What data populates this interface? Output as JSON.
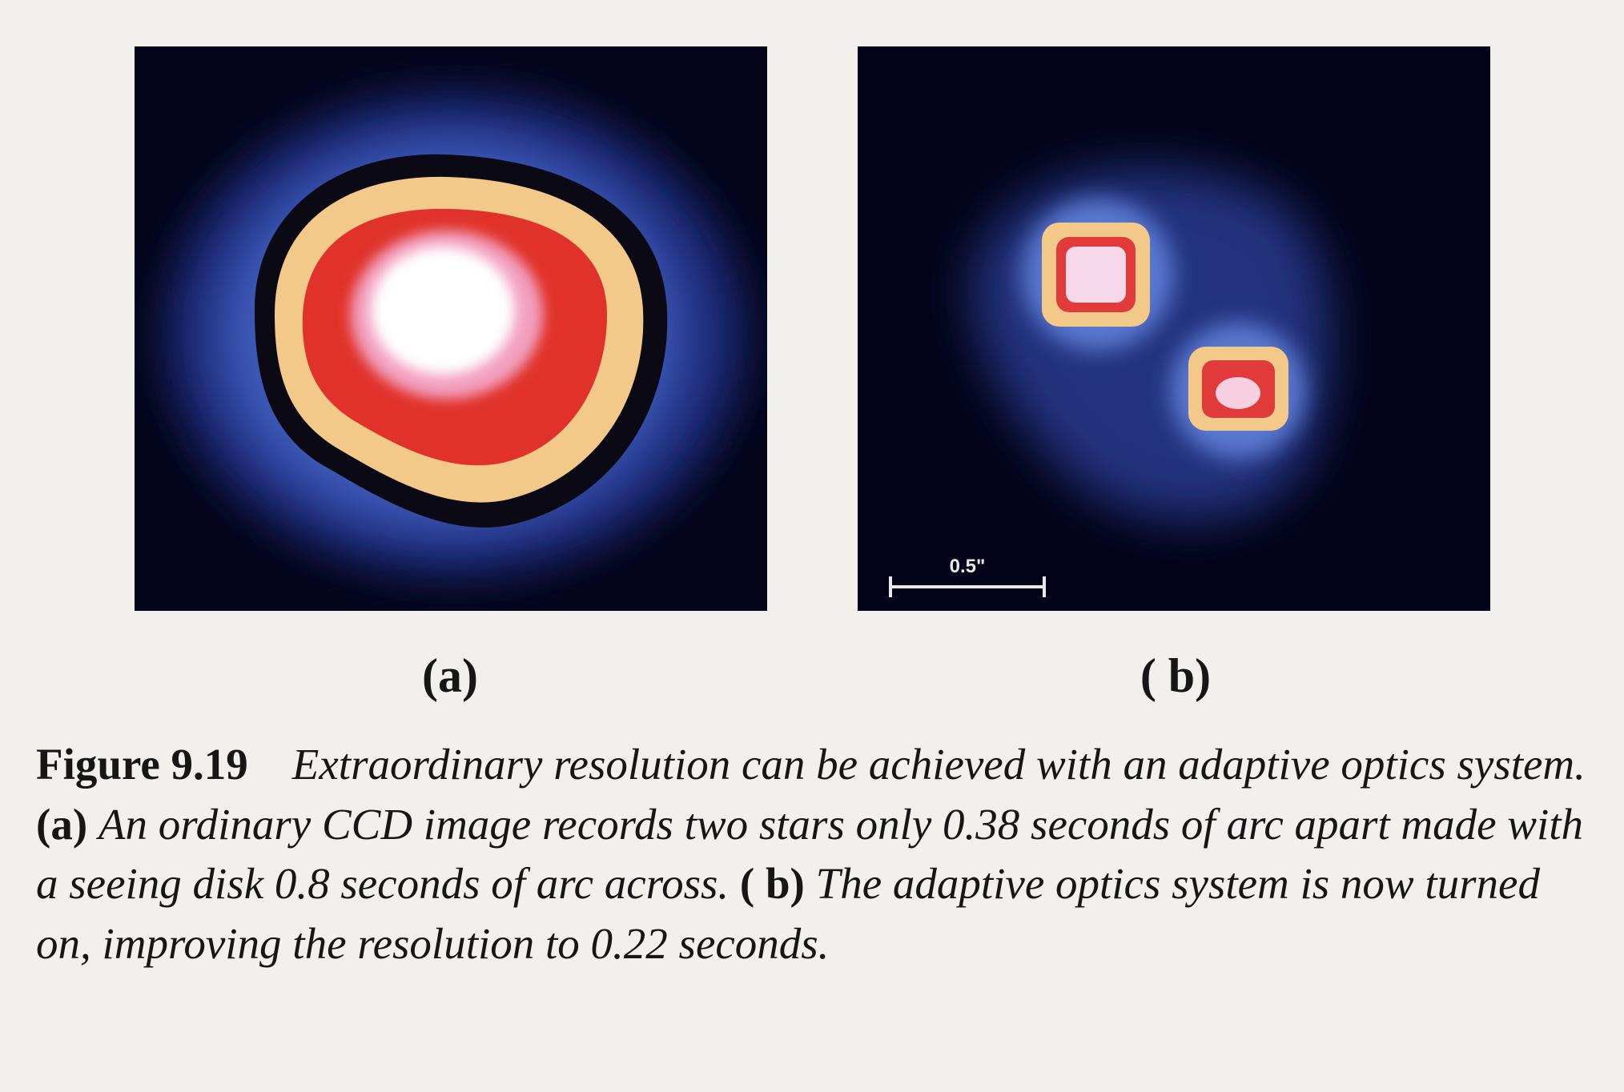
{
  "figure": {
    "panels": [
      {
        "label": "(a)"
      },
      {
        "label": "( b)",
        "scale_bar": "0.5\""
      }
    ],
    "caption": {
      "number": "Figure 9.19",
      "text_1": "Extraordinary resolution can be achieved with an adaptive optics system.",
      "ref_a": "(a)",
      "text_2": "An ordinary CCD image records two stars only 0.38 seconds of arc apart made with a seeing disk 0.8 seconds of arc across.",
      "ref_b": "( b)",
      "text_3": "The adaptive optics system is now turned on, improving the resolution to 0.22 seconds."
    }
  }
}
